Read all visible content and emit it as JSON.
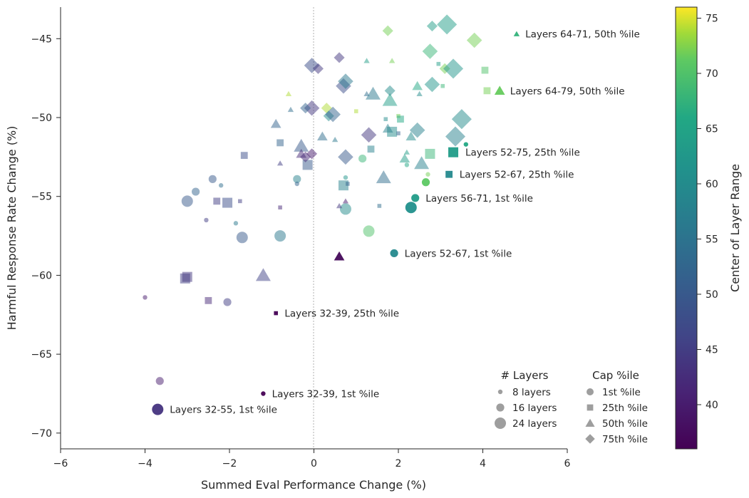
{
  "chart_data": {
    "type": "scatter",
    "xlabel": "Summed Eval Performance Change (%)",
    "ylabel": "Harmful Response Rate Change (%)",
    "xlim": [
      -6,
      6
    ],
    "ylim": [
      -71,
      -43
    ],
    "xticks": [
      "−6",
      "−4",
      "−2",
      "0",
      "2",
      "4",
      "6"
    ],
    "yticks": [
      "−45",
      "−50",
      "−55",
      "−60",
      "−65",
      "−70"
    ],
    "grid": false,
    "colorbar": {
      "label": "Center of Layer Range",
      "range": [
        36,
        76
      ],
      "ticks": [
        "40",
        "45",
        "50",
        "55",
        "60",
        "65",
        "70",
        "75"
      ],
      "colormap": "viridis"
    },
    "size_legend": {
      "title": "# Layers",
      "entries": [
        {
          "label": "8 layers",
          "n": 8
        },
        {
          "label": "16 layers",
          "n": 16
        },
        {
          "label": "24 layers",
          "n": 24
        }
      ]
    },
    "marker_legend": {
      "title": "Cap %ile",
      "entries": [
        {
          "label": "1st %ile",
          "marker": "circle"
        },
        {
          "label": "25th %ile",
          "marker": "square"
        },
        {
          "label": "50th %ile",
          "marker": "triangle"
        },
        {
          "label": "75th %ile",
          "marker": "diamond"
        }
      ]
    },
    "highlighted": [
      {
        "label": "Layers 64-71, 50th %ile",
        "x": 4.8,
        "y": -44.7,
        "center": 67.5,
        "n": 8,
        "marker": "triangle"
      },
      {
        "label": "Layers 64-79, 50th %ile",
        "x": 4.4,
        "y": -48.3,
        "center": 71.5,
        "n": 16,
        "marker": "triangle"
      },
      {
        "label": "Layers 52-75, 25th %ile",
        "x": 3.3,
        "y": -52.2,
        "center": 63.5,
        "n": 24,
        "marker": "square"
      },
      {
        "label": "Layers 52-67, 25th %ile",
        "x": 3.2,
        "y": -53.6,
        "center": 59.5,
        "n": 16,
        "marker": "square"
      },
      {
        "label": "Layers 56-71, 1st %ile",
        "x": 2.4,
        "y": -55.1,
        "center": 63.5,
        "n": 16,
        "marker": "circle"
      },
      {
        "label": "Layers 52-67, 1st %ile",
        "x": 1.9,
        "y": -58.6,
        "center": 59.5,
        "n": 16,
        "marker": "circle"
      },
      {
        "label": "Layers 32-39, 25th %ile",
        "x": -0.9,
        "y": -62.4,
        "center": 35.5,
        "n": 8,
        "marker": "square"
      },
      {
        "label": "Layers 32-39, 1st %ile",
        "x": -1.2,
        "y": -67.5,
        "center": 35.5,
        "n": 8,
        "marker": "circle"
      },
      {
        "label": "Layers 32-55, 1st %ile",
        "x": -3.7,
        "y": -68.5,
        "center": 43.5,
        "n": 24,
        "marker": "circle"
      }
    ],
    "highlighted_extra": [
      {
        "x": 2.3,
        "y": -55.7,
        "center": 61.0,
        "n": 24,
        "marker": "circle"
      },
      {
        "x": 3.6,
        "y": -51.7,
        "center": 66.0,
        "n": 8,
        "marker": "circle"
      },
      {
        "x": 2.65,
        "y": -54.1,
        "center": 71.0,
        "n": 16,
        "marker": "circle"
      },
      {
        "x": 0.6,
        "y": -58.8,
        "center": 37.0,
        "n": 16,
        "marker": "triangle"
      }
    ],
    "points": [
      {
        "x": -4.0,
        "y": -61.4,
        "center": 40,
        "n": 8,
        "marker": "circle"
      },
      {
        "x": -3.65,
        "y": -66.7,
        "center": 40,
        "n": 16,
        "marker": "circle"
      },
      {
        "x": -3.0,
        "y": -55.3,
        "center": 50,
        "n": 24,
        "marker": "circle"
      },
      {
        "x": -2.8,
        "y": -54.7,
        "center": 52,
        "n": 16,
        "marker": "circle"
      },
      {
        "x": -2.55,
        "y": -56.5,
        "center": 45,
        "n": 8,
        "marker": "circle"
      },
      {
        "x": -2.4,
        "y": -53.9,
        "center": 50,
        "n": 16,
        "marker": "circle"
      },
      {
        "x": -2.2,
        "y": -54.3,
        "center": 54,
        "n": 8,
        "marker": "circle"
      },
      {
        "x": -2.05,
        "y": -61.7,
        "center": 45,
        "n": 16,
        "marker": "circle"
      },
      {
        "x": -1.85,
        "y": -56.7,
        "center": 56,
        "n": 8,
        "marker": "circle"
      },
      {
        "x": -1.7,
        "y": -57.6,
        "center": 50,
        "n": 24,
        "marker": "circle"
      },
      {
        "x": -0.8,
        "y": -57.5,
        "center": 56,
        "n": 24,
        "marker": "circle"
      },
      {
        "x": -0.4,
        "y": -53.9,
        "center": 58,
        "n": 16,
        "marker": "circle"
      },
      {
        "x": -0.4,
        "y": -54.2,
        "center": 52,
        "n": 8,
        "marker": "circle"
      },
      {
        "x": 0.75,
        "y": -53.8,
        "center": 62,
        "n": 8,
        "marker": "circle"
      },
      {
        "x": 0.75,
        "y": -55.8,
        "center": 60,
        "n": 24,
        "marker": "circle"
      },
      {
        "x": 1.15,
        "y": -52.6,
        "center": 68,
        "n": 16,
        "marker": "circle"
      },
      {
        "x": 1.3,
        "y": -57.2,
        "center": 70,
        "n": 24,
        "marker": "circle"
      },
      {
        "x": 2.2,
        "y": -53.0,
        "center": 66,
        "n": 8,
        "marker": "circle"
      },
      {
        "x": 2.7,
        "y": -53.6,
        "center": 72,
        "n": 8,
        "marker": "circle"
      },
      {
        "x": -3.05,
        "y": -60.2,
        "center": 45,
        "n": 24,
        "marker": "square"
      },
      {
        "x": -2.5,
        "y": -61.6,
        "center": 42,
        "n": 16,
        "marker": "square"
      },
      {
        "x": -2.3,
        "y": -55.3,
        "center": 45,
        "n": 16,
        "marker": "square"
      },
      {
        "x": -2.05,
        "y": -55.4,
        "center": 48,
        "n": 24,
        "marker": "square"
      },
      {
        "x": -1.75,
        "y": -55.3,
        "center": 45,
        "n": 8,
        "marker": "square"
      },
      {
        "x": -1.65,
        "y": -52.4,
        "center": 48,
        "n": 16,
        "marker": "square"
      },
      {
        "x": -0.8,
        "y": -55.7,
        "center": 42,
        "n": 8,
        "marker": "square"
      },
      {
        "x": -0.8,
        "y": -51.6,
        "center": 52,
        "n": 16,
        "marker": "square"
      },
      {
        "x": -0.15,
        "y": -53.0,
        "center": 50,
        "n": 24,
        "marker": "square"
      },
      {
        "x": 0.7,
        "y": -54.3,
        "center": 58,
        "n": 24,
        "marker": "square"
      },
      {
        "x": 0.8,
        "y": -54.2,
        "center": 52,
        "n": 8,
        "marker": "square"
      },
      {
        "x": 1.0,
        "y": -49.6,
        "center": 74,
        "n": 8,
        "marker": "square"
      },
      {
        "x": 1.35,
        "y": -52.0,
        "center": 58,
        "n": 16,
        "marker": "square"
      },
      {
        "x": 1.55,
        "y": -55.6,
        "center": 54,
        "n": 8,
        "marker": "square"
      },
      {
        "x": 1.7,
        "y": -50.1,
        "center": 60,
        "n": 8,
        "marker": "square"
      },
      {
        "x": 1.85,
        "y": -50.9,
        "center": 60,
        "n": 24,
        "marker": "square"
      },
      {
        "x": 2.0,
        "y": -51.0,
        "center": 52,
        "n": 8,
        "marker": "square"
      },
      {
        "x": 2.0,
        "y": -49.9,
        "center": 72,
        "n": 8,
        "marker": "square"
      },
      {
        "x": 2.05,
        "y": -50.1,
        "center": 66,
        "n": 16,
        "marker": "square"
      },
      {
        "x": 2.75,
        "y": -52.3,
        "center": 68,
        "n": 24,
        "marker": "square"
      },
      {
        "x": 2.95,
        "y": -46.6,
        "center": 64,
        "n": 8,
        "marker": "square"
      },
      {
        "x": 3.05,
        "y": -48.0,
        "center": 68,
        "n": 8,
        "marker": "square"
      },
      {
        "x": 4.05,
        "y": -47.0,
        "center": 70,
        "n": 16,
        "marker": "square"
      },
      {
        "x": 4.1,
        "y": -48.3,
        "center": 72,
        "n": 16,
        "marker": "square"
      },
      {
        "x": -3.0,
        "y": -60.1,
        "center": 44,
        "n": 24,
        "marker": "square"
      },
      {
        "x": -1.2,
        "y": -60.0,
        "center": 46,
        "n": 24,
        "marker": "triangle"
      },
      {
        "x": -0.8,
        "y": -52.9,
        "center": 45,
        "n": 8,
        "marker": "triangle"
      },
      {
        "x": -0.9,
        "y": -50.4,
        "center": 52,
        "n": 16,
        "marker": "triangle"
      },
      {
        "x": -0.55,
        "y": -49.5,
        "center": 54,
        "n": 8,
        "marker": "triangle"
      },
      {
        "x": -0.6,
        "y": -48.5,
        "center": 74,
        "n": 8,
        "marker": "triangle"
      },
      {
        "x": -0.3,
        "y": -51.8,
        "center": 50,
        "n": 24,
        "marker": "triangle"
      },
      {
        "x": -0.3,
        "y": -52.3,
        "center": 42,
        "n": 16,
        "marker": "triangle"
      },
      {
        "x": 0.2,
        "y": -51.2,
        "center": 54,
        "n": 16,
        "marker": "triangle"
      },
      {
        "x": 0.5,
        "y": -51.4,
        "center": 56,
        "n": 8,
        "marker": "triangle"
      },
      {
        "x": 0.6,
        "y": -55.6,
        "center": 44,
        "n": 8,
        "marker": "triangle"
      },
      {
        "x": 0.75,
        "y": -55.3,
        "center": 40,
        "n": 8,
        "marker": "triangle"
      },
      {
        "x": 1.25,
        "y": -48.5,
        "center": 54,
        "n": 8,
        "marker": "triangle"
      },
      {
        "x": 1.25,
        "y": -46.4,
        "center": 64,
        "n": 8,
        "marker": "triangle"
      },
      {
        "x": 1.4,
        "y": -48.5,
        "center": 56,
        "n": 24,
        "marker": "triangle"
      },
      {
        "x": 1.65,
        "y": -53.8,
        "center": 54,
        "n": 24,
        "marker": "triangle"
      },
      {
        "x": 1.8,
        "y": -48.9,
        "center": 64,
        "n": 24,
        "marker": "triangle"
      },
      {
        "x": 1.85,
        "y": -46.4,
        "center": 72,
        "n": 8,
        "marker": "triangle"
      },
      {
        "x": 1.75,
        "y": -50.7,
        "center": 58,
        "n": 16,
        "marker": "triangle"
      },
      {
        "x": 2.15,
        "y": -52.6,
        "center": 64,
        "n": 16,
        "marker": "triangle"
      },
      {
        "x": 2.2,
        "y": -52.2,
        "center": 64,
        "n": 8,
        "marker": "triangle"
      },
      {
        "x": 2.3,
        "y": -51.2,
        "center": 60,
        "n": 16,
        "marker": "triangle"
      },
      {
        "x": 2.45,
        "y": -48.0,
        "center": 66,
        "n": 16,
        "marker": "triangle"
      },
      {
        "x": 2.5,
        "y": -48.5,
        "center": 60,
        "n": 8,
        "marker": "triangle"
      },
      {
        "x": 2.55,
        "y": -52.9,
        "center": 58,
        "n": 24,
        "marker": "triangle"
      },
      {
        "x": -0.05,
        "y": -46.7,
        "center": 48,
        "n": 24,
        "marker": "diamond"
      },
      {
        "x": 0.1,
        "y": -46.9,
        "center": 44,
        "n": 16,
        "marker": "diamond"
      },
      {
        "x": -0.05,
        "y": -49.4,
        "center": 44,
        "n": 24,
        "marker": "diamond"
      },
      {
        "x": -0.2,
        "y": -49.4,
        "center": 52,
        "n": 16,
        "marker": "diamond"
      },
      {
        "x": -0.2,
        "y": -52.5,
        "center": 42,
        "n": 16,
        "marker": "diamond"
      },
      {
        "x": -0.05,
        "y": -52.3,
        "center": 40,
        "n": 16,
        "marker": "diamond"
      },
      {
        "x": 0.3,
        "y": -49.4,
        "center": 74,
        "n": 16,
        "marker": "diamond"
      },
      {
        "x": 0.35,
        "y": -49.9,
        "center": 60,
        "n": 16,
        "marker": "diamond"
      },
      {
        "x": 0.45,
        "y": -49.8,
        "center": 52,
        "n": 24,
        "marker": "diamond"
      },
      {
        "x": 0.6,
        "y": -46.2,
        "center": 44,
        "n": 16,
        "marker": "diamond"
      },
      {
        "x": 0.7,
        "y": -48.0,
        "center": 48,
        "n": 24,
        "marker": "diamond"
      },
      {
        "x": 0.75,
        "y": -47.7,
        "center": 56,
        "n": 24,
        "marker": "diamond"
      },
      {
        "x": 0.75,
        "y": -52.5,
        "center": 50,
        "n": 24,
        "marker": "diamond"
      },
      {
        "x": 1.3,
        "y": -51.1,
        "center": 44,
        "n": 24,
        "marker": "diamond"
      },
      {
        "x": 1.75,
        "y": -44.5,
        "center": 72,
        "n": 16,
        "marker": "diamond"
      },
      {
        "x": 1.8,
        "y": -48.3,
        "center": 60,
        "n": 16,
        "marker": "diamond"
      },
      {
        "x": 2.45,
        "y": -50.8,
        "center": 58,
        "n": 24,
        "marker": "diamond"
      },
      {
        "x": 2.75,
        "y": -45.8,
        "center": 68,
        "n": 24,
        "marker": "diamond"
      },
      {
        "x": 2.8,
        "y": -44.2,
        "center": 64,
        "n": 16,
        "marker": "diamond"
      },
      {
        "x": 2.8,
        "y": -47.9,
        "center": 62,
        "n": 24,
        "marker": "diamond"
      },
      {
        "x": 3.1,
        "y": -46.9,
        "center": 72,
        "n": 16,
        "marker": "diamond"
      },
      {
        "x": 3.15,
        "y": -44.1,
        "center": 64,
        "n": 32,
        "marker": "diamond"
      },
      {
        "x": 3.3,
        "y": -46.9,
        "center": 62,
        "n": 32,
        "marker": "diamond"
      },
      {
        "x": 3.35,
        "y": -51.2,
        "center": 58,
        "n": 32,
        "marker": "diamond"
      },
      {
        "x": 3.5,
        "y": -50.1,
        "center": 60,
        "n": 32,
        "marker": "diamond"
      },
      {
        "x": 3.8,
        "y": -45.1,
        "center": 72,
        "n": 24,
        "marker": "diamond"
      }
    ]
  }
}
